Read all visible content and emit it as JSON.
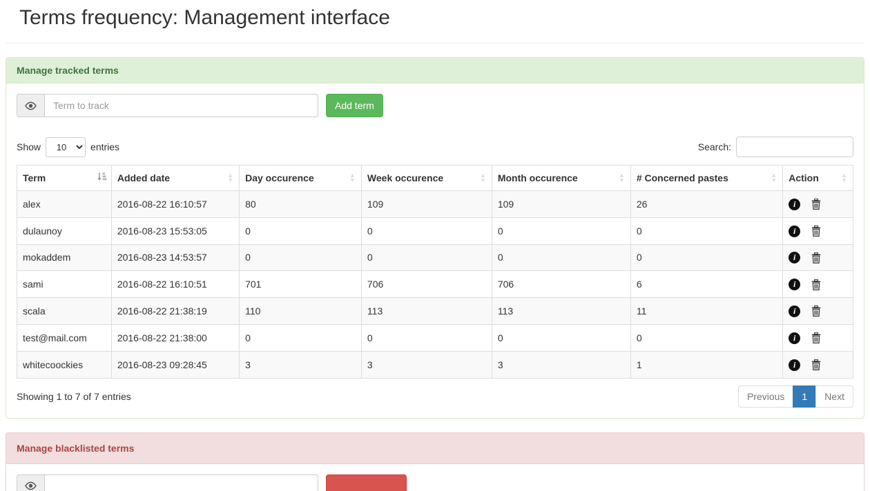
{
  "page": {
    "title": "Terms frequency: Management interface"
  },
  "tracked_panel": {
    "title": "Manage tracked terms",
    "term_input_placeholder": "Term to track",
    "add_button_label": "Add term"
  },
  "datatable": {
    "show_label": "Show",
    "entries_label": "entries",
    "page_length": "10",
    "search_label": "Search:",
    "search_value": "",
    "columns": [
      "Term",
      "Added date",
      "Day occurence",
      "Week occurence",
      "Month occurence",
      "# Concerned pastes",
      "Action"
    ],
    "rows": [
      {
        "term": "alex",
        "added_date": "2016-08-22 16:10:57",
        "day": "80",
        "week": "109",
        "month": "109",
        "pastes": "26"
      },
      {
        "term": "dulaunoy",
        "added_date": "2016-08-23 15:53:05",
        "day": "0",
        "week": "0",
        "month": "0",
        "pastes": "0"
      },
      {
        "term": "mokaddem",
        "added_date": "2016-08-23 14:53:57",
        "day": "0",
        "week": "0",
        "month": "0",
        "pastes": "0"
      },
      {
        "term": "sami",
        "added_date": "2016-08-22 16:10:51",
        "day": "701",
        "week": "706",
        "month": "706",
        "pastes": "6"
      },
      {
        "term": "scala",
        "added_date": "2016-08-22 21:38:19",
        "day": "110",
        "week": "113",
        "month": "113",
        "pastes": "11"
      },
      {
        "term": "test@mail.com",
        "added_date": "2016-08-22 21:38:00",
        "day": "0",
        "week": "0",
        "month": "0",
        "pastes": "0"
      },
      {
        "term": "whitecoockies",
        "added_date": "2016-08-23 09:28:45",
        "day": "3",
        "week": "3",
        "month": "3",
        "pastes": "1"
      }
    ],
    "info_text": "Showing 1 to 7 of 7 entries",
    "pagination": {
      "previous_label": "Previous",
      "current_page": "1",
      "next_label": "Next"
    }
  },
  "blacklist_panel": {
    "title": "Manage blacklisted terms"
  },
  "colors": {
    "success_header_bg": "#dff0d8",
    "success_header_text": "#3c763d",
    "success_border": "#d6e9c6",
    "danger_header_bg": "#f2dede",
    "danger_header_text": "#a94442",
    "danger_border": "#ebccd1",
    "button_success": "#5cb85c",
    "button_danger": "#d9534f",
    "pagination_active": "#337ab7",
    "row_stripe": "#f9f9f9",
    "table_border": "#dddddd"
  },
  "icons": {
    "eye": "eye-icon",
    "info": "info-circle-icon",
    "trash": "trash-icon",
    "sort_asc": "sort-ascending-icon",
    "sort_both": "sort-unsorted-icon"
  }
}
